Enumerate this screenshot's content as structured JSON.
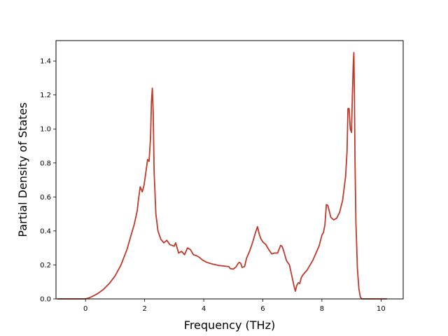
{
  "chart_data": {
    "type": "line",
    "title": "",
    "xlabel": "Frequency (THz)",
    "ylabel": "Partial Density of States",
    "xlim": [
      -1.0,
      10.75
    ],
    "ylim": [
      0.0,
      1.52
    ],
    "xticks": [
      0,
      2,
      4,
      6,
      8,
      10
    ],
    "yticks": [
      0.0,
      0.2,
      0.4,
      0.6,
      0.8,
      1.0,
      1.2,
      1.4
    ],
    "xtick_labels": [
      "0",
      "2",
      "4",
      "6",
      "8",
      "10"
    ],
    "ytick_labels": [
      "0.0",
      "0.2",
      "0.4",
      "0.6",
      "0.8",
      "1.0",
      "1.2",
      "1.4"
    ],
    "grid": false,
    "colors": {
      "line": "#c0392b",
      "axes": "#000000",
      "background": "#ffffff"
    },
    "series": [
      {
        "color": "#c0392b",
        "x": [
          -0.95,
          -0.5,
          0.0,
          0.1,
          0.2,
          0.4,
          0.6,
          0.8,
          1.0,
          1.2,
          1.4,
          1.55,
          1.65,
          1.75,
          1.78,
          1.85,
          1.92,
          1.98,
          2.03,
          2.1,
          2.15,
          2.2,
          2.23,
          2.26,
          2.29,
          2.32,
          2.38,
          2.45,
          2.55,
          2.65,
          2.75,
          2.85,
          3.0,
          3.05,
          3.15,
          3.25,
          3.35,
          3.45,
          3.55,
          3.65,
          3.75,
          3.85,
          3.95,
          4.1,
          4.3,
          4.5,
          4.7,
          4.85,
          4.9,
          5.0,
          5.1,
          5.15,
          5.2,
          5.25,
          5.3,
          5.38,
          5.45,
          5.55,
          5.65,
          5.75,
          5.82,
          5.88,
          5.93,
          6.0,
          6.1,
          6.2,
          6.3,
          6.4,
          6.5,
          6.6,
          6.65,
          6.7,
          6.75,
          6.8,
          6.9,
          7.0,
          7.05,
          7.1,
          7.15,
          7.2,
          7.25,
          7.3,
          7.35,
          7.5,
          7.7,
          7.9,
          8.0,
          8.05,
          8.1,
          8.15,
          8.2,
          8.3,
          8.4,
          8.5,
          8.6,
          8.7,
          8.8,
          8.85,
          8.88,
          8.92,
          8.96,
          9.0,
          9.03,
          9.06,
          9.08,
          9.1,
          9.12,
          9.15,
          9.2,
          9.25,
          9.3,
          9.35,
          9.5,
          10.2
        ],
        "y": [
          0.0,
          0.0,
          0.0,
          0.005,
          0.012,
          0.03,
          0.055,
          0.09,
          0.135,
          0.2,
          0.29,
          0.38,
          0.44,
          0.52,
          0.57,
          0.66,
          0.63,
          0.67,
          0.73,
          0.82,
          0.81,
          0.95,
          1.16,
          1.24,
          1.1,
          0.75,
          0.5,
          0.4,
          0.35,
          0.33,
          0.345,
          0.32,
          0.31,
          0.33,
          0.27,
          0.28,
          0.26,
          0.3,
          0.29,
          0.26,
          0.255,
          0.245,
          0.23,
          0.215,
          0.205,
          0.197,
          0.193,
          0.19,
          0.178,
          0.175,
          0.19,
          0.205,
          0.215,
          0.21,
          0.185,
          0.19,
          0.24,
          0.28,
          0.33,
          0.39,
          0.425,
          0.38,
          0.355,
          0.335,
          0.32,
          0.29,
          0.265,
          0.27,
          0.27,
          0.315,
          0.31,
          0.285,
          0.255,
          0.225,
          0.2,
          0.12,
          0.08,
          0.045,
          0.08,
          0.095,
          0.09,
          0.125,
          0.14,
          0.17,
          0.23,
          0.31,
          0.375,
          0.39,
          0.435,
          0.555,
          0.55,
          0.48,
          0.465,
          0.475,
          0.51,
          0.58,
          0.72,
          0.87,
          1.12,
          1.12,
          1.0,
          0.98,
          1.2,
          1.38,
          1.45,
          1.18,
          0.8,
          0.45,
          0.18,
          0.06,
          0.01,
          0.0,
          0.0,
          0.0
        ]
      }
    ]
  }
}
